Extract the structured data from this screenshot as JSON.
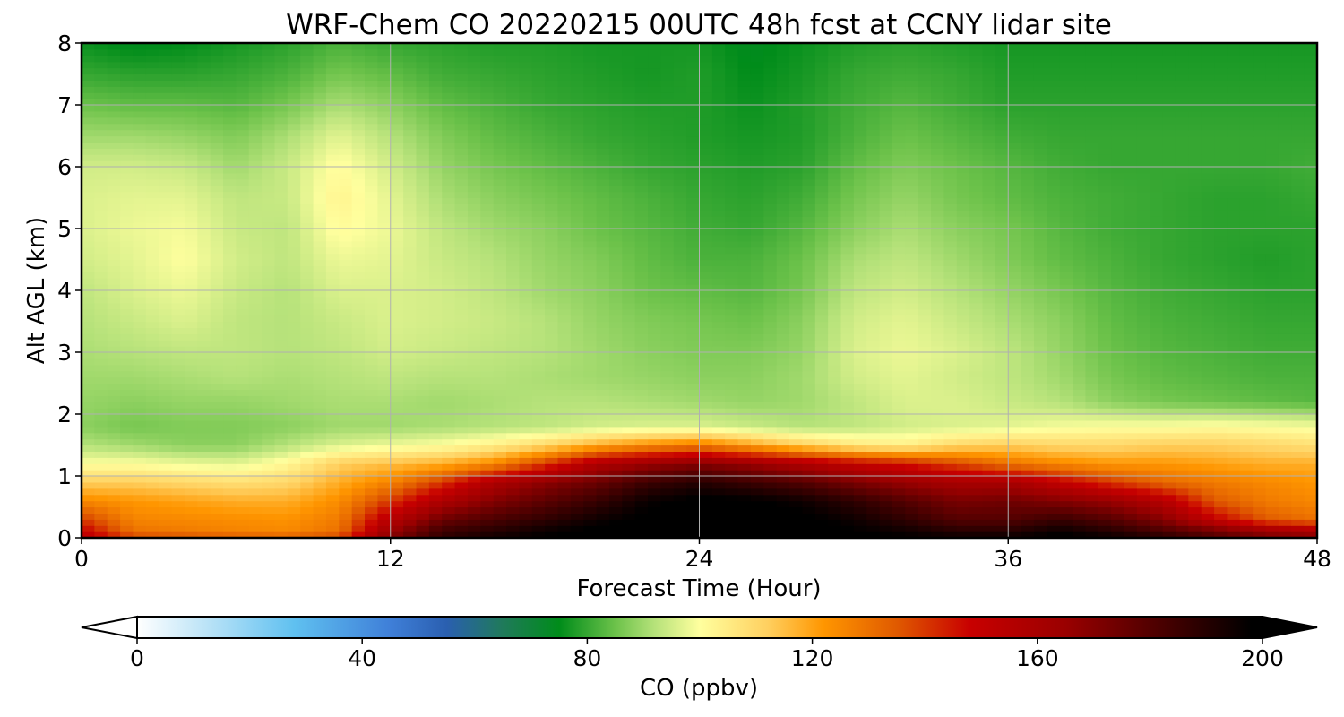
{
  "chart_data": {
    "type": "heatmap",
    "title": "WRF-Chem CO  20220215 00UTC 48h fcst at CCNY lidar site",
    "xlabel": "Forecast Time (Hour)",
    "ylabel": "Alt AGL (km)",
    "xlim": [
      0,
      48
    ],
    "ylim": [
      0,
      8
    ],
    "xticks": [
      0,
      12,
      24,
      36,
      48
    ],
    "yticks": [
      0,
      1,
      2,
      3,
      4,
      5,
      6,
      7,
      8
    ],
    "grid": true,
    "x_hours": [
      0,
      2,
      4,
      6,
      8,
      10,
      12,
      14,
      16,
      18,
      20,
      22,
      24,
      26,
      28,
      30,
      32,
      34,
      36,
      38,
      40,
      42,
      44,
      46,
      48
    ],
    "z_km": [
      0,
      0.1,
      0.3,
      0.6,
      0.9,
      1.2,
      1.5,
      1.8,
      2.2,
      2.6,
      3.0,
      3.5,
      4.0,
      4.5,
      5.0,
      5.5,
      6.0,
      6.5,
      7.0,
      7.5,
      8.0
    ],
    "co_ppbv": [
      [
        155,
        140,
        138,
        136,
        135,
        140,
        170,
        188,
        195,
        198,
        200,
        202,
        205,
        205,
        204,
        200,
        198,
        196,
        196,
        200,
        196,
        190,
        180,
        172,
        170
      ],
      [
        150,
        130,
        128,
        126,
        125,
        130,
        165,
        185,
        190,
        196,
        200,
        202,
        205,
        205,
        203,
        198,
        195,
        190,
        190,
        196,
        190,
        182,
        175,
        165,
        160
      ],
      [
        140,
        126,
        125,
        124,
        123,
        128,
        155,
        175,
        182,
        188,
        195,
        200,
        203,
        202,
        200,
        195,
        188,
        180,
        180,
        186,
        180,
        170,
        150,
        135,
        130
      ],
      [
        125,
        122,
        120,
        118,
        118,
        124,
        140,
        158,
        170,
        178,
        186,
        196,
        200,
        199,
        195,
        188,
        180,
        172,
        174,
        170,
        165,
        155,
        135,
        128,
        125
      ],
      [
        112,
        112,
        110,
        108,
        110,
        118,
        126,
        140,
        158,
        168,
        175,
        185,
        190,
        185,
        180,
        172,
        165,
        160,
        160,
        150,
        140,
        132,
        128,
        125,
        122
      ],
      [
        100,
        100,
        98,
        97,
        102,
        112,
        115,
        118,
        125,
        140,
        158,
        165,
        170,
        165,
        158,
        150,
        145,
        138,
        130,
        125,
        122,
        122,
        120,
        118,
        118
      ],
      [
        92,
        90,
        88,
        88,
        92,
        96,
        98,
        100,
        104,
        110,
        118,
        124,
        128,
        120,
        112,
        106,
        104,
        110,
        112,
        110,
        110,
        112,
        112,
        110,
        108
      ],
      [
        88,
        86,
        87,
        87,
        88,
        90,
        90,
        91,
        92,
        93,
        95,
        96,
        96,
        94,
        92,
        93,
        95,
        96,
        97,
        99,
        100,
        100,
        101,
        100,
        99
      ],
      [
        89,
        88,
        89,
        89,
        90,
        91,
        91,
        90,
        91,
        92,
        92,
        91,
        90,
        89,
        90,
        93,
        96,
        96,
        94,
        92,
        88,
        86,
        85,
        84,
        83
      ],
      [
        90,
        90,
        91,
        92,
        91,
        92,
        93,
        92,
        92,
        91,
        90,
        89,
        88,
        88,
        90,
        95,
        97,
        95,
        93,
        90,
        86,
        84,
        83,
        82,
        82
      ],
      [
        91,
        92,
        93,
        93,
        92,
        93,
        95,
        94,
        93,
        92,
        90,
        88,
        87,
        87,
        89,
        96,
        98,
        96,
        93,
        89,
        85,
        83,
        82,
        81,
        81
      ],
      [
        92,
        94,
        96,
        93,
        92,
        94,
        96,
        95,
        94,
        92,
        89,
        87,
        86,
        85,
        88,
        95,
        97,
        94,
        91,
        88,
        84,
        82,
        81,
        80,
        80
      ],
      [
        93,
        96,
        98,
        94,
        92,
        96,
        96,
        95,
        93,
        90,
        88,
        85,
        84,
        83,
        86,
        93,
        95,
        92,
        89,
        86,
        83,
        81,
        80,
        79,
        79
      ],
      [
        95,
        97,
        100,
        95,
        93,
        98,
        97,
        94,
        92,
        89,
        87,
        84,
        82,
        82,
        85,
        91,
        93,
        90,
        87,
        84,
        82,
        80,
        79,
        78,
        79
      ],
      [
        96,
        98,
        99,
        94,
        93,
        101,
        98,
        93,
        90,
        88,
        85,
        83,
        81,
        80,
        83,
        88,
        91,
        88,
        86,
        83,
        81,
        80,
        79,
        79,
        79
      ],
      [
        96,
        97,
        97,
        93,
        94,
        103,
        97,
        91,
        88,
        86,
        84,
        82,
        80,
        79,
        81,
        86,
        89,
        86,
        84,
        82,
        81,
        80,
        79,
        79,
        80
      ],
      [
        95,
        95,
        94,
        90,
        94,
        101,
        95,
        89,
        86,
        84,
        82,
        80,
        79,
        78,
        79,
        84,
        87,
        85,
        83,
        81,
        80,
        80,
        80,
        80,
        81
      ],
      [
        90,
        90,
        89,
        87,
        91,
        97,
        92,
        87,
        84,
        82,
        80,
        79,
        78,
        77,
        78,
        82,
        85,
        83,
        81,
        80,
        80,
        80,
        80,
        80,
        80
      ],
      [
        85,
        84,
        84,
        83,
        86,
        91,
        88,
        84,
        82,
        80,
        79,
        78,
        78,
        76,
        78,
        81,
        83,
        81,
        79,
        79,
        79,
        79,
        79,
        79,
        79
      ],
      [
        80,
        79,
        79,
        80,
        82,
        86,
        84,
        81,
        80,
        79,
        78,
        77,
        78,
        75,
        77,
        80,
        81,
        80,
        78,
        78,
        78,
        78,
        78,
        78,
        78
      ],
      [
        76,
        74,
        75,
        77,
        79,
        82,
        80,
        79,
        78,
        78,
        77,
        77,
        77,
        74,
        76,
        78,
        79,
        78,
        77,
        77,
        77,
        77,
        77,
        77,
        77
      ]
    ],
    "colorbar": {
      "label": "CO  (ppbv)",
      "min": 0,
      "max": 200,
      "ticks": [
        0,
        40,
        80,
        120,
        160,
        200
      ],
      "extend": "both",
      "stops": [
        {
          "v": 0,
          "c": "#ffffff"
        },
        {
          "v": 12,
          "c": "#bde4f7"
        },
        {
          "v": 28,
          "c": "#5fc0f0"
        },
        {
          "v": 45,
          "c": "#3f7fd8"
        },
        {
          "v": 55,
          "c": "#2a5fb0"
        },
        {
          "v": 65,
          "c": "#1f7a5a"
        },
        {
          "v": 75,
          "c": "#008c1a"
        },
        {
          "v": 85,
          "c": "#6cc24a"
        },
        {
          "v": 92,
          "c": "#b6e27a"
        },
        {
          "v": 100,
          "c": "#ffff9e"
        },
        {
          "v": 112,
          "c": "#ffd060"
        },
        {
          "v": 122,
          "c": "#ff9600"
        },
        {
          "v": 135,
          "c": "#e05a00"
        },
        {
          "v": 148,
          "c": "#c80000"
        },
        {
          "v": 165,
          "c": "#9a0000"
        },
        {
          "v": 182,
          "c": "#4a0000"
        },
        {
          "v": 198,
          "c": "#000000"
        },
        {
          "v": 200,
          "c": "#000000"
        }
      ]
    }
  }
}
